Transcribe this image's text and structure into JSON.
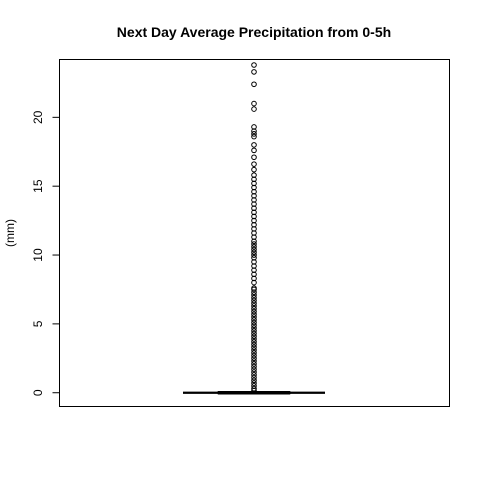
{
  "chart_data": {
    "type": "box",
    "title": "Next Day Average Precipitation from 0-5h",
    "xlabel": "",
    "ylabel": "(mm)",
    "ylim": [
      -1,
      24.2
    ],
    "y_ticks": [
      0,
      5,
      10,
      15,
      20
    ],
    "y_tick_labels": [
      "0",
      "5",
      "10",
      "15",
      "20"
    ],
    "grid": false,
    "legend": "none",
    "box": {
      "min": 0,
      "q1": 0,
      "median": 0,
      "q3": 0,
      "max": 0
    },
    "outliers": [
      0.15,
      0.3,
      0.5,
      0.7,
      0.9,
      1.1,
      1.3,
      1.5,
      1.7,
      1.9,
      2.1,
      2.3,
      2.5,
      2.7,
      2.9,
      3.1,
      3.3,
      3.5,
      3.7,
      3.9,
      4.1,
      4.3,
      4.5,
      4.7,
      4.9,
      5.1,
      5.3,
      5.5,
      5.7,
      5.9,
      6.1,
      6.3,
      6.5,
      6.7,
      6.9,
      7.1,
      7.3,
      7.5,
      7.6,
      8.0,
      8.3,
      8.6,
      8.9,
      9.2,
      9.5,
      9.8,
      10.0,
      10.2,
      10.4,
      10.6,
      10.8,
      11.0,
      11.3,
      11.6,
      11.9,
      12.2,
      12.5,
      12.8,
      13.1,
      13.4,
      13.7,
      14.0,
      14.3,
      14.6,
      14.9,
      15.2,
      15.5,
      15.8,
      16.2,
      16.6,
      17.1,
      17.6,
      18.0,
      18.6,
      18.8,
      19.0,
      19.3,
      20.6,
      21.0,
      22.4,
      23.3,
      23.8
    ]
  }
}
